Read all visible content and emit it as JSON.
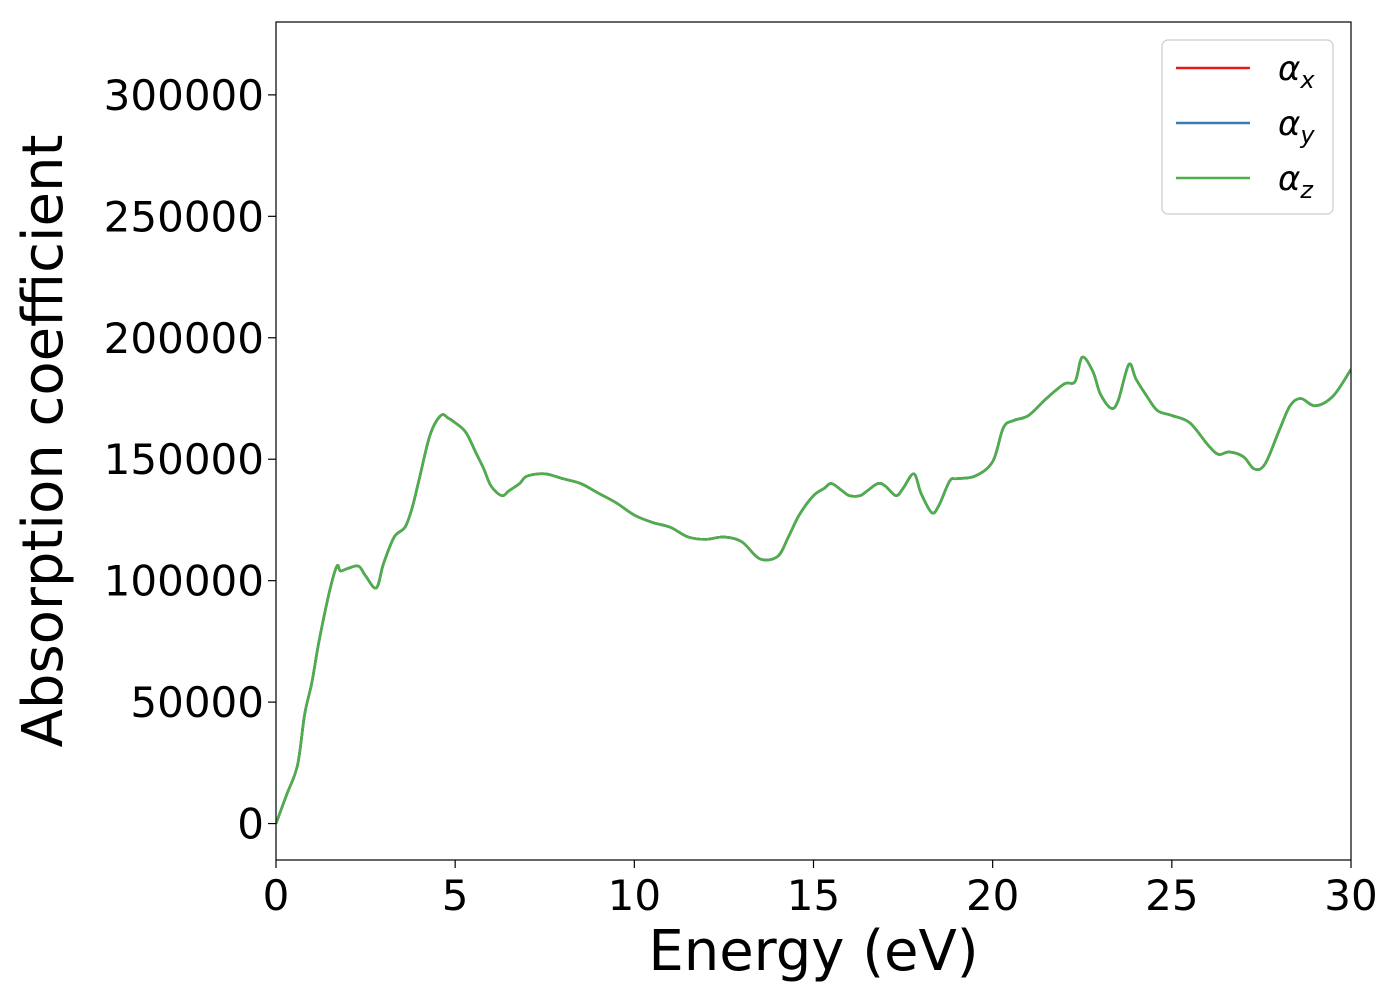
{
  "chart_data": {
    "type": "line",
    "xlabel": "Energy (eV)",
    "ylabel": "Absorption coefficient",
    "xlim": [
      0,
      30
    ],
    "ylim": [
      -15000,
      330000
    ],
    "xticks": [
      0,
      5,
      10,
      15,
      20,
      25,
      30
    ],
    "yticks": [
      0,
      50000,
      100000,
      150000,
      200000,
      250000,
      300000
    ],
    "grid": false,
    "legend_position": "top-right",
    "x": [
      0,
      0.3,
      0.6,
      0.8,
      1.0,
      1.2,
      1.5,
      1.7,
      1.8,
      2.0,
      2.3,
      2.5,
      2.8,
      3.0,
      3.3,
      3.6,
      3.8,
      4.0,
      4.3,
      4.6,
      4.8,
      5.0,
      5.3,
      5.6,
      5.8,
      6.0,
      6.3,
      6.5,
      6.8,
      7.0,
      7.5,
      8.0,
      8.5,
      9.0,
      9.5,
      10.0,
      10.5,
      11.0,
      11.5,
      12.0,
      12.5,
      13.0,
      13.5,
      14.0,
      14.3,
      14.6,
      15.0,
      15.3,
      15.5,
      15.8,
      16.0,
      16.3,
      16.5,
      16.8,
      17.0,
      17.3,
      17.5,
      17.8,
      18.0,
      18.3,
      18.5,
      18.8,
      19.0,
      19.5,
      20.0,
      20.3,
      20.6,
      21.0,
      21.5,
      22.0,
      22.3,
      22.5,
      22.8,
      23.0,
      23.3,
      23.5,
      23.8,
      24.0,
      24.3,
      24.6,
      25.0,
      25.5,
      26.0,
      26.3,
      26.6,
      27.0,
      27.3,
      27.6,
      28.0,
      28.3,
      28.6,
      29.0,
      29.5,
      30.0
    ],
    "series": [
      {
        "name": "α_x",
        "color": "#e41a1c",
        "values": [
          0,
          12000,
          24000,
          45000,
          58000,
          75000,
          96000,
          106000,
          104000,
          105000,
          106000,
          102000,
          97000,
          107000,
          118000,
          122000,
          130000,
          142000,
          160000,
          168000,
          167000,
          165000,
          161000,
          152000,
          146000,
          139000,
          135000,
          137000,
          140000,
          143000,
          144000,
          142000,
          140000,
          136000,
          132000,
          127000,
          124000,
          122000,
          118000,
          117000,
          118000,
          116000,
          109000,
          110000,
          118000,
          127000,
          135000,
          138000,
          140000,
          137000,
          135000,
          135000,
          137000,
          140000,
          139000,
          135000,
          138000,
          144000,
          136000,
          128000,
          131000,
          141000,
          142000,
          143000,
          149000,
          163000,
          166000,
          168000,
          175000,
          181000,
          182000,
          192000,
          186000,
          177000,
          171000,
          174000,
          189000,
          183000,
          176000,
          170000,
          168000,
          165000,
          156000,
          152000,
          153000,
          151000,
          146000,
          148000,
          162000,
          172000,
          175000,
          172000,
          176000,
          187000
        ]
      },
      {
        "name": "α_y",
        "color": "#377eb8",
        "values": [
          0,
          12000,
          24000,
          45000,
          58000,
          75000,
          96000,
          106000,
          104000,
          105000,
          106000,
          102000,
          97000,
          107000,
          118000,
          122000,
          130000,
          142000,
          160000,
          168000,
          167000,
          165000,
          161000,
          152000,
          146000,
          139000,
          135000,
          137000,
          140000,
          143000,
          144000,
          142000,
          140000,
          136000,
          132000,
          127000,
          124000,
          122000,
          118000,
          117000,
          118000,
          116000,
          109000,
          110000,
          118000,
          127000,
          135000,
          138000,
          140000,
          137000,
          135000,
          135000,
          137000,
          140000,
          139000,
          135000,
          138000,
          144000,
          136000,
          128000,
          131000,
          141000,
          142000,
          143000,
          149000,
          163000,
          166000,
          168000,
          175000,
          181000,
          182000,
          192000,
          186000,
          177000,
          171000,
          174000,
          189000,
          183000,
          176000,
          170000,
          168000,
          165000,
          156000,
          152000,
          153000,
          151000,
          146000,
          148000,
          162000,
          172000,
          175000,
          172000,
          176000,
          187000
        ]
      },
      {
        "name": "α_z",
        "color": "#4daf4a",
        "values": [
          0,
          12000,
          24000,
          45000,
          58000,
          75000,
          96000,
          106000,
          104000,
          105000,
          106000,
          102000,
          97000,
          107000,
          118000,
          122000,
          130000,
          142000,
          160000,
          168000,
          167000,
          165000,
          161000,
          152000,
          146000,
          139000,
          135000,
          137000,
          140000,
          143000,
          144000,
          142000,
          140000,
          136000,
          132000,
          127000,
          124000,
          122000,
          118000,
          117000,
          118000,
          116000,
          109000,
          110000,
          118000,
          127000,
          135000,
          138000,
          140000,
          137000,
          135000,
          135000,
          137000,
          140000,
          139000,
          135000,
          138000,
          144000,
          136000,
          128000,
          131000,
          141000,
          142000,
          143000,
          149000,
          163000,
          166000,
          168000,
          175000,
          181000,
          182000,
          192000,
          186000,
          177000,
          171000,
          174000,
          189000,
          183000,
          176000,
          170000,
          168000,
          165000,
          156000,
          152000,
          153000,
          151000,
          146000,
          148000,
          162000,
          172000,
          175000,
          172000,
          176000,
          187000
        ]
      }
    ],
    "legend": [
      {
        "symbol": "α",
        "sub": "x",
        "color": "#e41a1c"
      },
      {
        "symbol": "α",
        "sub": "y",
        "color": "#377eb8"
      },
      {
        "symbol": "α",
        "sub": "z",
        "color": "#4daf4a"
      }
    ]
  }
}
